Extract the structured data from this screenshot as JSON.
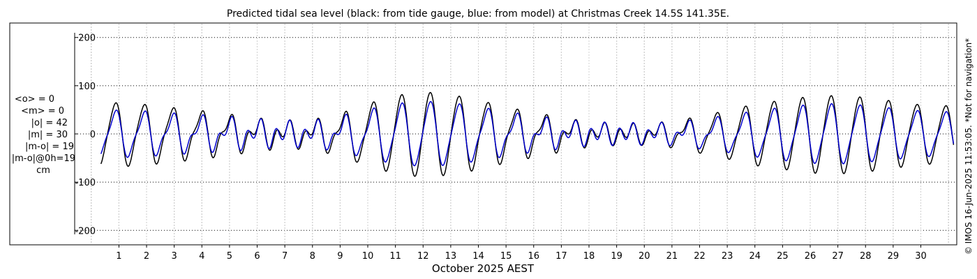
{
  "chart_data": {
    "type": "line",
    "title": "Predicted tidal sea level (black: from tide gauge, blue: from model) at Christmas Creek 14.5S 141.35E.",
    "xlabel": "October 2025 AEST",
    "ylabel": "",
    "x_unit": "day of month",
    "xlim": [
      -0.6,
      31.3
    ],
    "ylim": [
      -230,
      230
    ],
    "yticks": [
      -200,
      -100,
      0,
      100,
      200
    ],
    "ytick_labels": [
      "-200",
      "-100",
      "0",
      "100",
      "200"
    ],
    "xticks": [
      1,
      2,
      3,
      4,
      5,
      6,
      7,
      8,
      9,
      10,
      11,
      12,
      13,
      14,
      15,
      16,
      17,
      18,
      19,
      20,
      21,
      22,
      23,
      24,
      25,
      26,
      27,
      28,
      29,
      30
    ],
    "xtick_labels": [
      "1",
      "2",
      "3",
      "4",
      "5",
      "6",
      "7",
      "8",
      "9",
      "10",
      "11",
      "12",
      "13",
      "14",
      "15",
      "16",
      "17",
      "18",
      "19",
      "20",
      "21",
      "22",
      "23",
      "24",
      "25",
      "26",
      "27",
      "28",
      "29",
      "30"
    ],
    "grid": true,
    "data_start_day": 0.35,
    "data_end_day": 31.2,
    "sample_step_hours": 1,
    "series": [
      {
        "name": "tide gauge",
        "color": "#000000",
        "diurnal_amplitude": [
          60,
          65,
          60,
          52,
          44,
          34,
          22,
          16,
          20,
          38,
          62,
          80,
          88,
          82,
          70,
          54,
          40,
          26,
          14,
          10,
          12,
          20,
          34,
          48,
          62,
          70,
          78,
          80,
          76,
          68,
          60,
          58
        ],
        "semidiurnal_amplitude": [
          8,
          8,
          10,
          12,
          14,
          16,
          18,
          18,
          16,
          14,
          10,
          8,
          6,
          8,
          10,
          12,
          14,
          16,
          16,
          16,
          14,
          12,
          10,
          8,
          8,
          8,
          8,
          8,
          8,
          8,
          8,
          8
        ],
        "diurnal_period_hours": 24.84,
        "semidiurnal_period_hours": 12.42
      },
      {
        "name": "model",
        "color": "#0000cc",
        "diurnal_amplitude": [
          42,
          46,
          42,
          36,
          30,
          24,
          16,
          12,
          14,
          28,
          46,
          60,
          66,
          62,
          52,
          40,
          28,
          18,
          10,
          8,
          10,
          14,
          24,
          34,
          44,
          52,
          58,
          60,
          56,
          50,
          44,
          42
        ],
        "semidiurnal_amplitude": [
          10,
          10,
          12,
          14,
          16,
          18,
          20,
          20,
          18,
          16,
          12,
          10,
          8,
          10,
          12,
          14,
          16,
          18,
          18,
          18,
          16,
          14,
          12,
          10,
          10,
          10,
          10,
          10,
          10,
          10,
          10,
          10
        ],
        "diurnal_period_hours": 24.84,
        "semidiurnal_period_hours": 12.42
      }
    ]
  },
  "stats": {
    "mean_obs": "<o> = 0",
    "mean_model": "<m> = 0",
    "abs_obs": "|o| = 42",
    "abs_model": "|m| = 30",
    "abs_diff": "|m-o| = 19",
    "abs_diff_0h": "|m-o|@0h=19",
    "unit": "cm"
  },
  "footer": {
    "credit": "© IMOS 16-Jun-2025 11:53:05.  *Not for navigation*"
  }
}
